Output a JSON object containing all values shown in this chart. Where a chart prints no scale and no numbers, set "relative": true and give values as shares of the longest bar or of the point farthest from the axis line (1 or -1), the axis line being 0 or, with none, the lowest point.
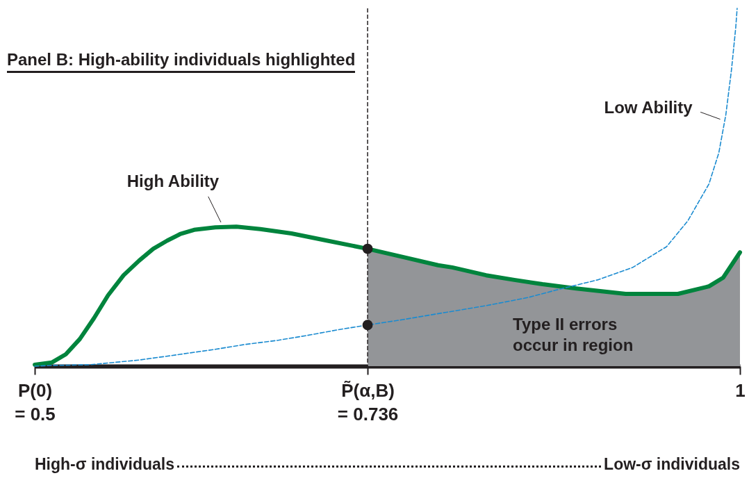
{
  "chart_data": {
    "type": "line",
    "title": "Panel B: High-ability individuals highlighted",
    "relative": true,
    "grid": false,
    "xlim": [
      0.5,
      1
    ],
    "xticks": [
      {
        "value": 0.5,
        "label": "P(0)\n= 0.5"
      },
      {
        "value": 0.736,
        "label": "P̃(α,B)\n= 0.736"
      },
      {
        "value": 1,
        "label": "1"
      }
    ],
    "series": [
      {
        "type": "area",
        "color": "#939598",
        "x": [
          0.736,
          0.761,
          0.786,
          0.796,
          0.82,
          0.84,
          0.86,
          0.884,
          0.919,
          0.956,
          0.978,
          0.988,
          1.0
        ],
        "values": [
          0.328,
          0.305,
          0.282,
          0.276,
          0.254,
          0.241,
          0.229,
          0.217,
          0.202,
          0.202,
          0.223,
          0.247,
          0.318
        ]
      },
      {
        "name": "High Ability",
        "color": "#00843d",
        "line_style": "solid",
        "x": [
          0.5,
          0.512,
          0.522,
          0.532,
          0.542,
          0.552,
          0.563,
          0.574,
          0.584,
          0.594,
          0.603,
          0.613,
          0.628,
          0.643,
          0.66,
          0.682,
          0.707,
          0.736,
          0.761,
          0.786,
          0.796,
          0.82,
          0.84,
          0.86,
          0.884,
          0.919,
          0.956,
          0.978,
          0.988,
          1.0
        ],
        "values": [
          0.004,
          0.01,
          0.033,
          0.076,
          0.134,
          0.198,
          0.254,
          0.295,
          0.328,
          0.351,
          0.369,
          0.381,
          0.388,
          0.39,
          0.383,
          0.371,
          0.351,
          0.328,
          0.305,
          0.282,
          0.276,
          0.254,
          0.241,
          0.229,
          0.217,
          0.202,
          0.202,
          0.223,
          0.247,
          0.318
        ]
      },
      {
        "name": "Low Ability",
        "color": "#1b8bd0",
        "line_style": "dashed",
        "x": [
          0.5,
          0.512,
          0.539,
          0.574,
          0.603,
          0.628,
          0.648,
          0.672,
          0.692,
          0.717,
          0.736,
          0.761,
          0.791,
          0.82,
          0.85,
          0.869,
          0.899,
          0.924,
          0.948,
          0.963,
          0.978,
          0.985,
          0.99,
          0.994,
          0.997,
          0.998
        ],
        "values": [
          0,
          0.002,
          0.004,
          0.017,
          0.033,
          0.047,
          0.06,
          0.072,
          0.085,
          0.103,
          0.115,
          0.13,
          0.15,
          0.169,
          0.192,
          0.212,
          0.241,
          0.276,
          0.334,
          0.406,
          0.509,
          0.596,
          0.703,
          0.829,
          0.946,
          1.0
        ]
      },
      {
        "type": "scatter",
        "marker": "circle",
        "color": "#231f20",
        "x": [
          0.736,
          0.736
        ],
        "values": [
          0.328,
          0.115
        ]
      }
    ],
    "ref_lines": [
      {
        "axis": "x",
        "value": 0.736,
        "line_style": "dashed",
        "color": "#231f20"
      }
    ],
    "annotations": [
      "Type II errors\noccur in region",
      "High-σ individuals",
      "Low-σ individuals"
    ]
  }
}
